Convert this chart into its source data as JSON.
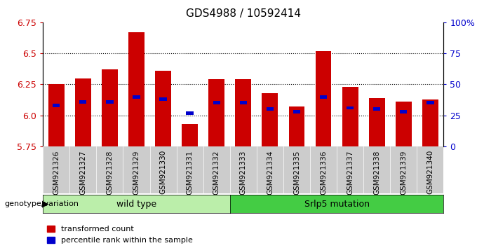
{
  "title": "GDS4988 / 10592414",
  "samples": [
    "GSM921326",
    "GSM921327",
    "GSM921328",
    "GSM921329",
    "GSM921330",
    "GSM921331",
    "GSM921332",
    "GSM921333",
    "GSM921334",
    "GSM921335",
    "GSM921336",
    "GSM921337",
    "GSM921338",
    "GSM921339",
    "GSM921340"
  ],
  "transformed_count": [
    6.25,
    6.3,
    6.37,
    6.67,
    6.36,
    5.93,
    6.29,
    6.29,
    6.18,
    6.07,
    6.52,
    6.23,
    6.14,
    6.11,
    6.13
  ],
  "percentile_rank": [
    33,
    36,
    36,
    40,
    38,
    27,
    35,
    35,
    30,
    28,
    40,
    31,
    30,
    28,
    35
  ],
  "ymin": 5.75,
  "ymax": 6.75,
  "yticks": [
    5.75,
    6.0,
    6.25,
    6.5,
    6.75
  ],
  "right_yticks": [
    0,
    25,
    50,
    75,
    100
  ],
  "right_yticklabels": [
    "0",
    "25",
    "50",
    "75",
    "100%"
  ],
  "bar_color": "#cc0000",
  "percentile_color": "#0000cc",
  "bar_width": 0.6,
  "n_wild": 7,
  "wild_type_label": "wild type",
  "mutation_label": "Srlp5 mutation",
  "group_bar_color_wt": "#bbeeaa",
  "group_bar_color_mut": "#44cc44",
  "genotype_label": "genotype/variation",
  "legend_items": [
    "transformed count",
    "percentile rank within the sample"
  ],
  "legend_colors": [
    "#cc0000",
    "#0000cc"
  ],
  "xticklabel_fontsize": 7.5,
  "title_fontsize": 11,
  "bg_color": "#ffffff",
  "xtick_bg_color": "#cccccc",
  "grid_color": "#000000"
}
